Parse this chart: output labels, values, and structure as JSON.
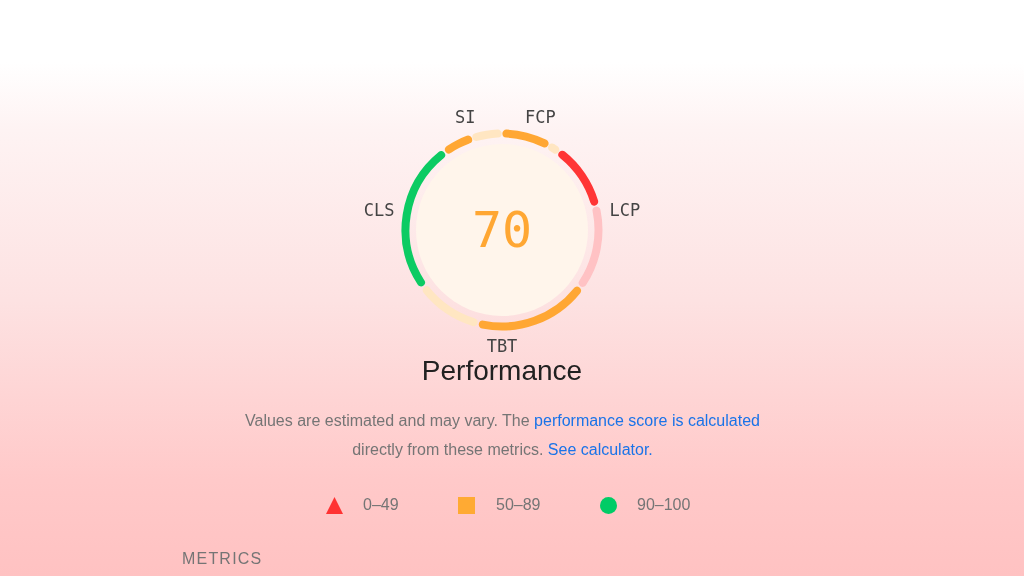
{
  "chart_data": {
    "type": "donut",
    "title": "Performance",
    "categories": [
      "FCP",
      null,
      "LCP",
      null,
      "TBT",
      null,
      "CLS",
      "SI",
      null
    ],
    "values": [
      8,
      2,
      11,
      14,
      19,
      11,
      25,
      5,
      5
    ],
    "colors": [
      "#ffa733",
      "#ffe6c2",
      "#ff3535",
      "#ffc2c4",
      "#ffa733",
      "#ffe6c2",
      "#0ccb63",
      "#ffa733",
      "#ffe6c2"
    ],
    "annotations": [
      "70",
      "Values are estimated and may vary. The",
      "performance score is calculated",
      "directly from these metrics.",
      "See calculator.",
      "0–49",
      "50–89",
      "90–100",
      "METRICS"
    ]
  }
}
